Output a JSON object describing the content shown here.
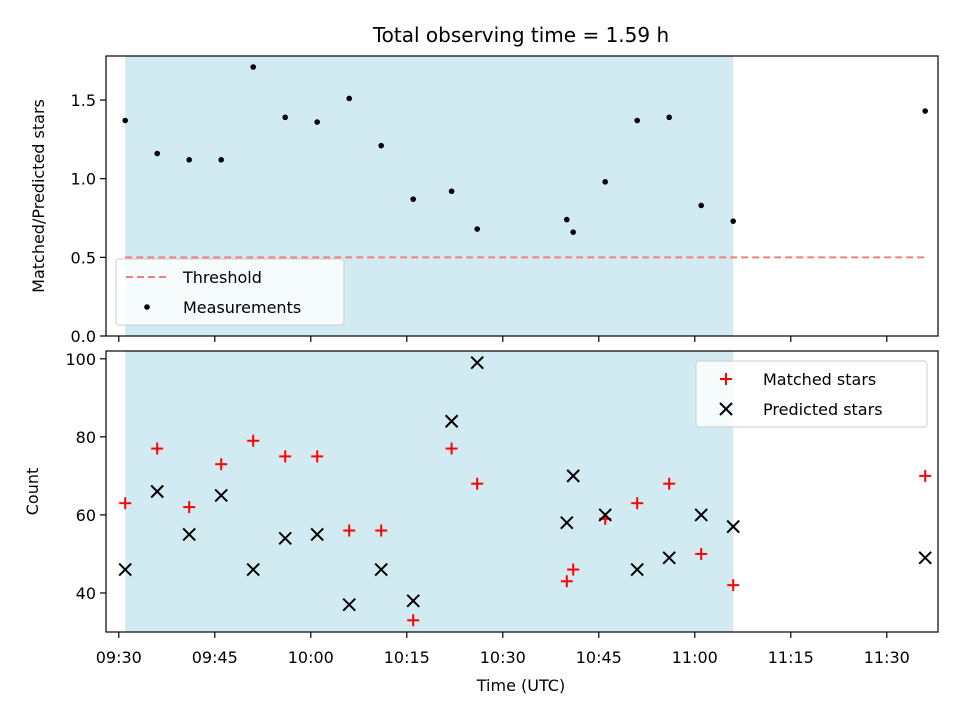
{
  "chart_data": [
    {
      "type": "scatter",
      "panel": "top",
      "title": "Total observing time = 1.59 h",
      "xlabel": "",
      "ylabel": "Matched/Predicted stars",
      "xlim": [
        "09:28",
        "11:38"
      ],
      "ylim": [
        0.0,
        1.78
      ],
      "yticks": [
        0.0,
        0.5,
        1.0,
        1.5
      ],
      "ytick_labels": [
        "0.0",
        "0.5",
        "1.0",
        "1.5"
      ],
      "shaded_region": {
        "start": "09:31",
        "end": "11:06",
        "color": "#add8e6"
      },
      "threshold": {
        "name": "Threshold",
        "value": 0.5,
        "x_start": "09:31",
        "x_end": "11:36",
        "color": "#f08080"
      },
      "series": [
        {
          "name": "Measurements",
          "color": "#000000",
          "x": [
            "09:31",
            "09:36",
            "09:41",
            "09:46",
            "09:51",
            "09:56",
            "10:01",
            "10:06",
            "10:11",
            "10:16",
            "10:22",
            "10:26",
            "10:40",
            "10:41",
            "10:46",
            "10:51",
            "10:56",
            "11:01",
            "11:06",
            "11:36"
          ],
          "y": [
            1.37,
            1.16,
            1.12,
            1.12,
            1.71,
            1.39,
            1.36,
            1.51,
            1.21,
            0.87,
            0.92,
            0.68,
            0.74,
            0.66,
            0.98,
            1.37,
            1.39,
            0.83,
            0.73,
            1.43
          ]
        }
      ],
      "legend": {
        "position": "lower-left",
        "entries": [
          "Threshold",
          "Measurements"
        ]
      },
      "grid": false
    },
    {
      "type": "scatter",
      "panel": "bottom",
      "title": "",
      "xlabel": "Time (UTC)",
      "ylabel": "Count",
      "xlim": [
        "09:28",
        "11:38"
      ],
      "xticks": [
        "09:30",
        "09:45",
        "10:00",
        "10:15",
        "10:30",
        "10:45",
        "11:00",
        "11:15",
        "11:30"
      ],
      "ylim": [
        30,
        102
      ],
      "yticks": [
        40,
        60,
        80,
        100
      ],
      "ytick_labels": [
        "40",
        "60",
        "80",
        "100"
      ],
      "shaded_region": {
        "start": "09:31",
        "end": "11:06",
        "color": "#add8e6"
      },
      "series": [
        {
          "name": "Matched stars",
          "marker": "plus",
          "color": "#ff0000",
          "x": [
            "09:31",
            "09:36",
            "09:41",
            "09:46",
            "09:51",
            "09:56",
            "10:01",
            "10:06",
            "10:11",
            "10:16",
            "10:22",
            "10:26",
            "10:40",
            "10:41",
            "10:46",
            "10:51",
            "10:56",
            "11:01",
            "11:06",
            "11:36"
          ],
          "y": [
            63,
            77,
            62,
            73,
            79,
            75,
            75,
            56,
            56,
            33,
            77,
            68,
            43,
            46,
            59,
            63,
            68,
            50,
            42,
            70
          ]
        },
        {
          "name": "Predicted stars",
          "marker": "x",
          "color": "#000000",
          "x": [
            "09:31",
            "09:36",
            "09:41",
            "09:46",
            "09:51",
            "09:56",
            "10:01",
            "10:06",
            "10:11",
            "10:16",
            "10:22",
            "10:26",
            "10:40",
            "10:41",
            "10:46",
            "10:51",
            "10:56",
            "11:01",
            "11:06",
            "11:36"
          ],
          "y": [
            46,
            66,
            55,
            65,
            46,
            54,
            55,
            37,
            46,
            38,
            84,
            99,
            58,
            70,
            60,
            46,
            49,
            60,
            57,
            49
          ]
        }
      ],
      "legend": {
        "position": "top-right",
        "entries": [
          "Matched stars",
          "Predicted stars"
        ]
      },
      "grid": false
    }
  ]
}
